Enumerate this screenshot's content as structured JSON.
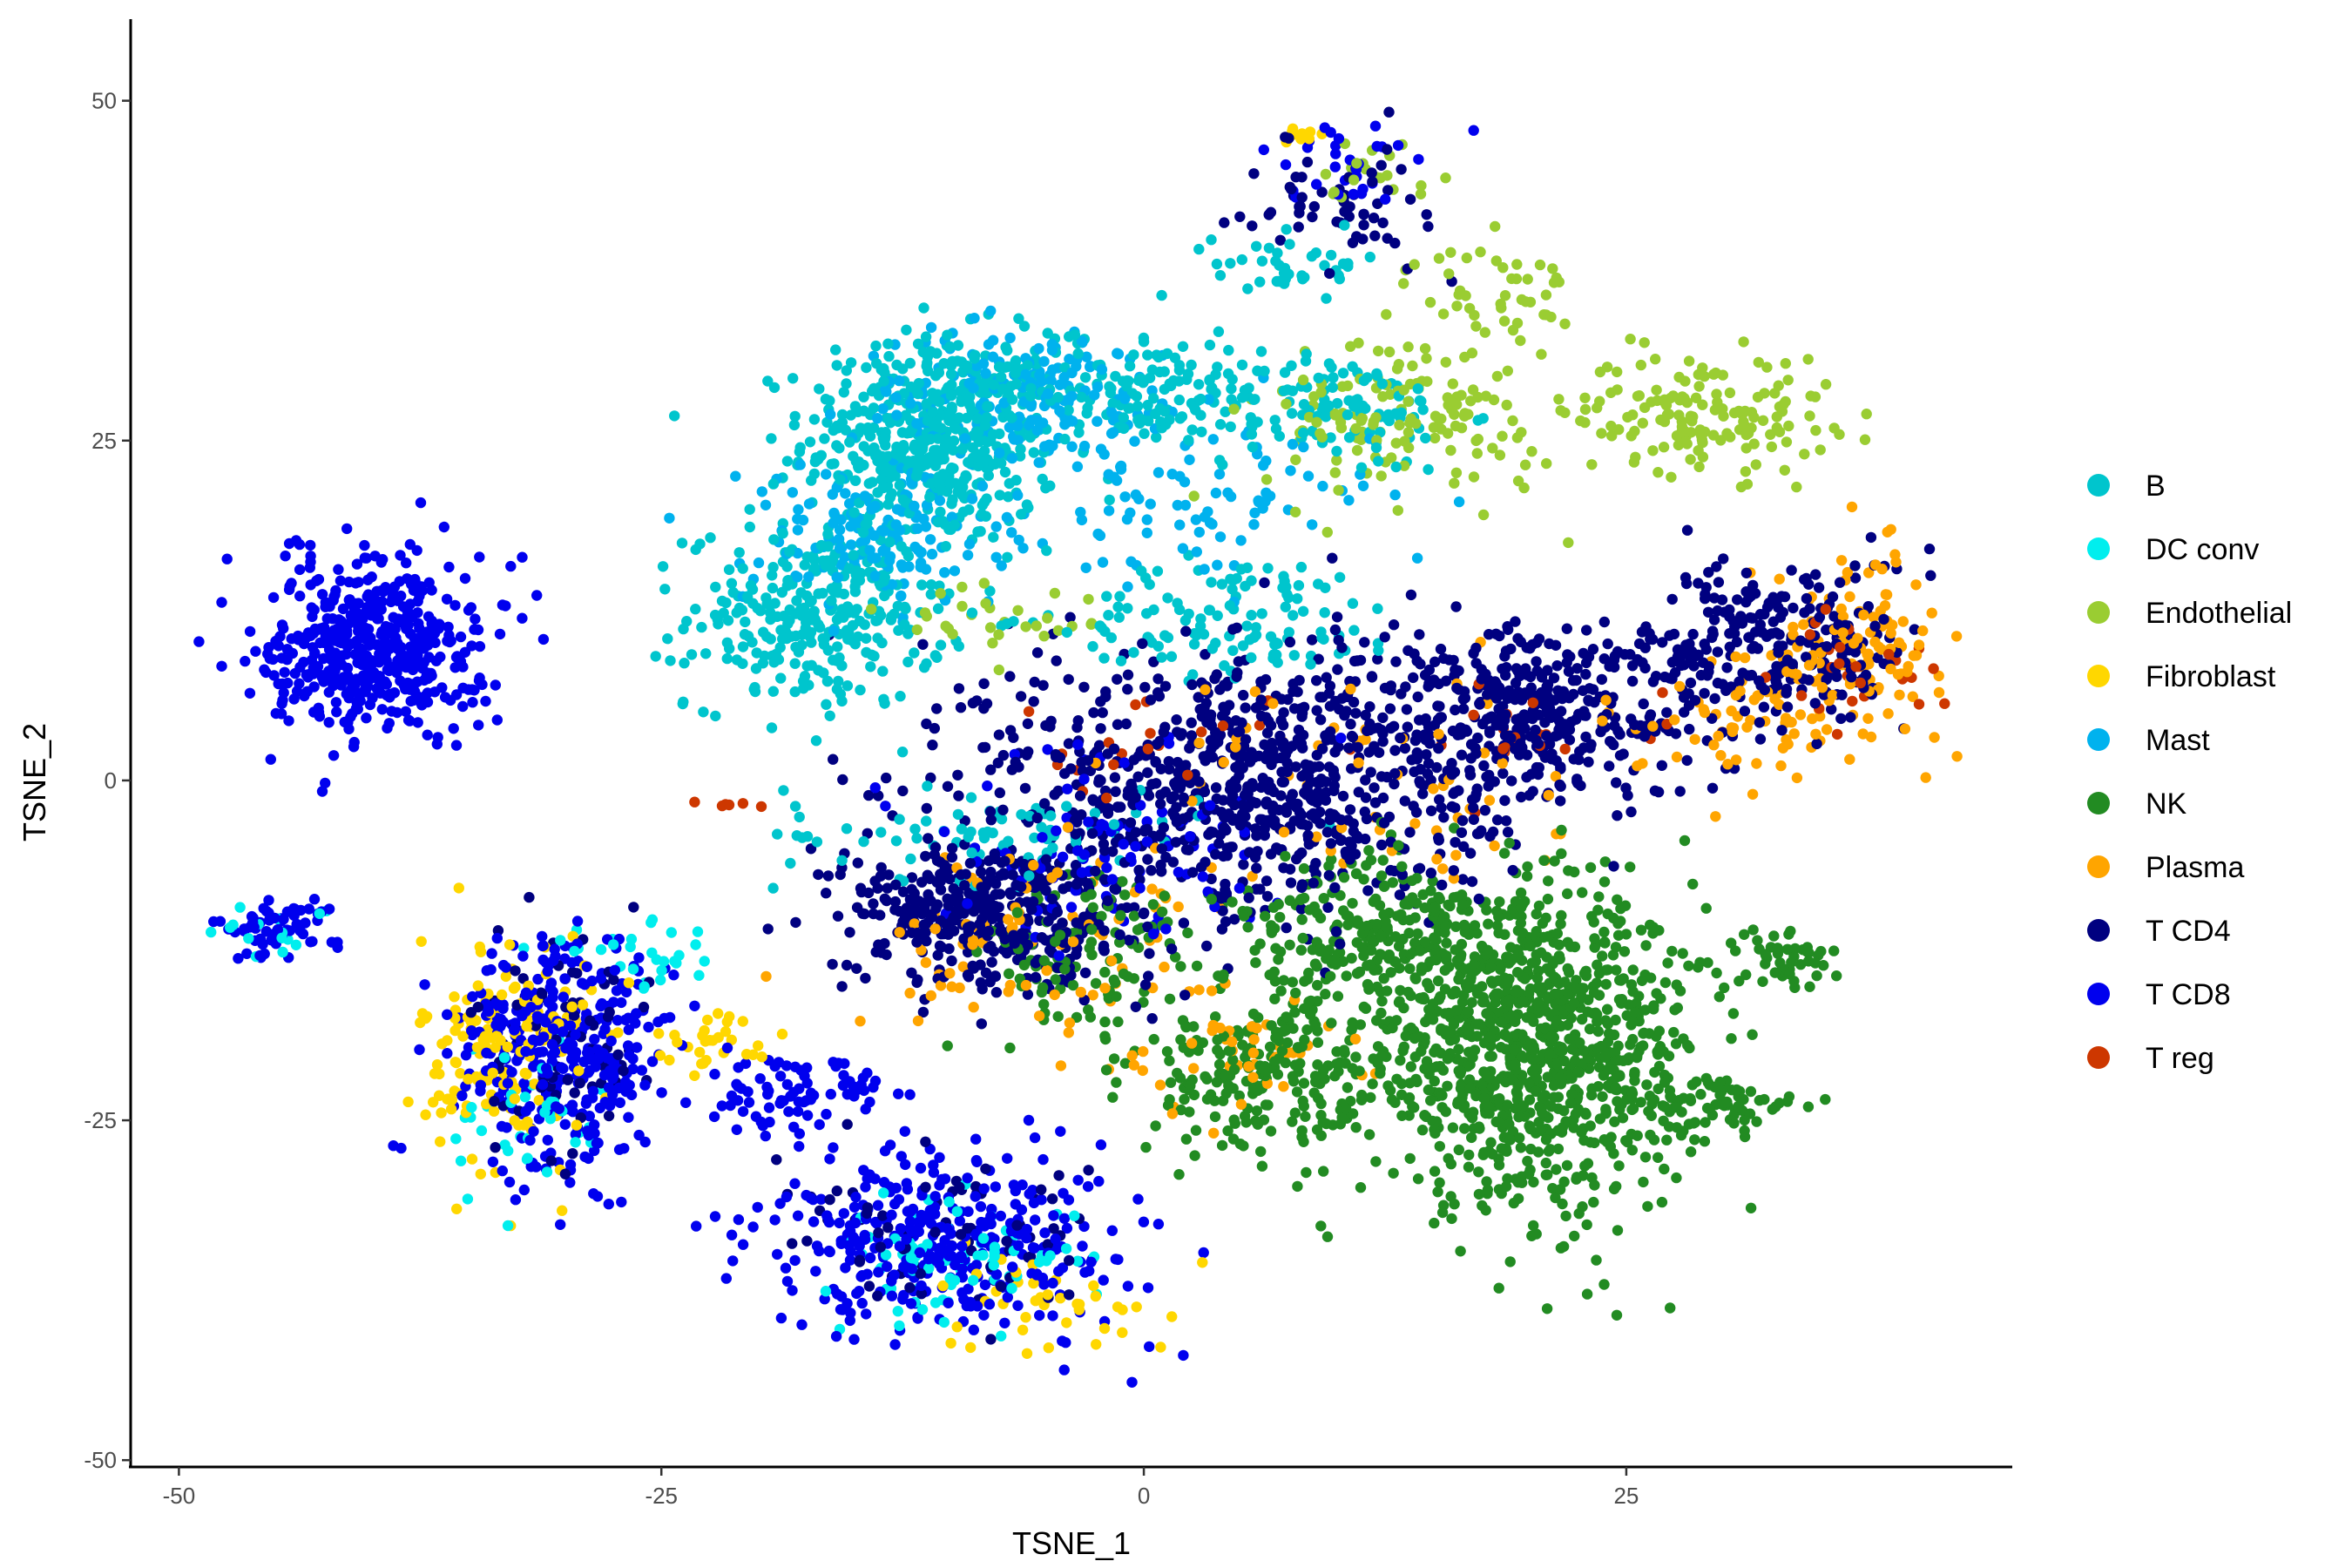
{
  "chart_data": {
    "type": "scatter",
    "title": "",
    "xlabel": "TSNE_1",
    "ylabel": "TSNE_2",
    "xlim": [
      -52.5,
      45
    ],
    "ylim": [
      -50.5,
      56
    ],
    "xticks": [
      -50,
      -25,
      0,
      25
    ],
    "xtick_labels": [
      "-50",
      "-25",
      "0",
      "25"
    ],
    "yticks": [
      -50,
      -25,
      0,
      25,
      50
    ],
    "ytick_labels": [
      "-50",
      "-25",
      "0",
      "25",
      "50"
    ],
    "grid": false,
    "legend_position": "right",
    "series": [
      {
        "name": "B",
        "color": "#00C5CD",
        "clusters": [
          {
            "cx": -11,
            "cy": 25,
            "rx": 6,
            "ry": 7,
            "n": 500
          },
          {
            "cx": -17,
            "cy": 12,
            "rx": 6,
            "ry": 6,
            "n": 300
          },
          {
            "cx": 0,
            "cy": 29,
            "rx": 8,
            "ry": 4,
            "n": 150
          },
          {
            "cx": 10,
            "cy": 27,
            "rx": 6,
            "ry": 4,
            "n": 100
          },
          {
            "cx": 5,
            "cy": 12,
            "rx": 8,
            "ry": 4,
            "n": 120
          },
          {
            "cx": -8,
            "cy": -4,
            "rx": 10,
            "ry": 3,
            "n": 80
          },
          {
            "cx": 8,
            "cy": 38,
            "rx": 4,
            "ry": 2,
            "n": 40
          }
        ]
      },
      {
        "name": "DC conv",
        "color": "#00EEEE",
        "clusters": [
          {
            "cx": -10,
            "cy": -35,
            "rx": 6,
            "ry": 4,
            "n": 80
          },
          {
            "cx": -26,
            "cy": -13,
            "rx": 5,
            "ry": 2,
            "n": 30
          },
          {
            "cx": -32,
            "cy": -25,
            "rx": 4,
            "ry": 6,
            "n": 40
          },
          {
            "cx": -45,
            "cy": -11,
            "rx": 3,
            "ry": 2,
            "n": 15
          }
        ]
      },
      {
        "name": "Endothelial",
        "color": "#9ACD32",
        "clusters": [
          {
            "cx": 14,
            "cy": 27,
            "rx": 7,
            "ry": 6,
            "n": 150
          },
          {
            "cx": 29,
            "cy": 27,
            "rx": 6,
            "ry": 4,
            "n": 150
          },
          {
            "cx": 18,
            "cy": 36,
            "rx": 4,
            "ry": 3,
            "n": 40
          },
          {
            "cx": 12,
            "cy": 45,
            "rx": 3,
            "ry": 2,
            "n": 20
          },
          {
            "cx": -8,
            "cy": 12,
            "rx": 6,
            "ry": 3,
            "n": 30
          }
        ]
      },
      {
        "name": "Fibroblast",
        "color": "#FFD700",
        "clusters": [
          {
            "cx": -33,
            "cy": -20,
            "rx": 4,
            "ry": 8,
            "n": 150
          },
          {
            "cx": -22,
            "cy": -19,
            "rx": 3,
            "ry": 2,
            "n": 30
          },
          {
            "cx": -5,
            "cy": -38,
            "rx": 6,
            "ry": 4,
            "n": 40
          },
          {
            "cx": 8,
            "cy": 47,
            "rx": 2,
            "ry": 1,
            "n": 10
          }
        ]
      },
      {
        "name": "Mast",
        "color": "#00B2EE",
        "clusters": [
          {
            "cx": -6,
            "cy": 28,
            "rx": 8,
            "ry": 5,
            "n": 200
          },
          {
            "cx": -14,
            "cy": 18,
            "rx": 6,
            "ry": 5,
            "n": 150
          },
          {
            "cx": 3,
            "cy": 20,
            "rx": 8,
            "ry": 5,
            "n": 80
          }
        ]
      },
      {
        "name": "NK",
        "color": "#228B22",
        "clusters": [
          {
            "cx": 20,
            "cy": -20,
            "rx": 8,
            "ry": 10,
            "n": 1000
          },
          {
            "cx": 13,
            "cy": -12,
            "rx": 8,
            "ry": 6,
            "n": 300
          },
          {
            "cx": 6,
            "cy": -22,
            "rx": 6,
            "ry": 5,
            "n": 200
          },
          {
            "cx": 33,
            "cy": -13,
            "rx": 3,
            "ry": 2,
            "n": 50
          },
          {
            "cx": 30,
            "cy": -24,
            "rx": 4,
            "ry": 2,
            "n": 60
          },
          {
            "cx": -3,
            "cy": -13,
            "rx": 5,
            "ry": 6,
            "n": 100
          }
        ]
      },
      {
        "name": "Plasma",
        "color": "#FFA500",
        "clusters": [
          {
            "cx": 37,
            "cy": 10,
            "rx": 4,
            "ry": 6,
            "n": 120
          },
          {
            "cx": 32,
            "cy": 5,
            "rx": 5,
            "ry": 5,
            "n": 60
          },
          {
            "cx": -5,
            "cy": -12,
            "rx": 9,
            "ry": 6,
            "n": 100
          },
          {
            "cx": 12,
            "cy": 0,
            "rx": 10,
            "ry": 8,
            "n": 60
          },
          {
            "cx": 5,
            "cy": -20,
            "rx": 6,
            "ry": 4,
            "n": 40
          }
        ]
      },
      {
        "name": "T CD4",
        "color": "#000080",
        "clusters": [
          {
            "cx": 5,
            "cy": 0,
            "rx": 12,
            "ry": 9,
            "n": 800
          },
          {
            "cx": 20,
            "cy": 5,
            "rx": 8,
            "ry": 6,
            "n": 400
          },
          {
            "cx": 33,
            "cy": 10,
            "rx": 6,
            "ry": 6,
            "n": 250
          },
          {
            "cx": -8,
            "cy": -10,
            "rx": 7,
            "ry": 5,
            "n": 400
          },
          {
            "cx": 10,
            "cy": 43,
            "rx": 4,
            "ry": 4,
            "n": 60
          },
          {
            "cx": -10,
            "cy": -34,
            "rx": 8,
            "ry": 5,
            "n": 80
          },
          {
            "cx": -30,
            "cy": -20,
            "rx": 4,
            "ry": 7,
            "n": 80
          }
        ]
      },
      {
        "name": "T CD8",
        "color": "#0000EE",
        "clusters": [
          {
            "cx": -40,
            "cy": 10,
            "rx": 5,
            "ry": 6,
            "n": 500
          },
          {
            "cx": -10,
            "cy": -34,
            "rx": 9,
            "ry": 6,
            "n": 350
          },
          {
            "cx": -30,
            "cy": -20,
            "rx": 5,
            "ry": 8,
            "n": 350
          },
          {
            "cx": -18,
            "cy": -23,
            "rx": 4,
            "ry": 3,
            "n": 80
          },
          {
            "cx": -45,
            "cy": -11,
            "rx": 3,
            "ry": 2,
            "n": 60
          },
          {
            "cx": -2,
            "cy": -5,
            "rx": 8,
            "ry": 6,
            "n": 100
          },
          {
            "cx": 10,
            "cy": 45,
            "rx": 4,
            "ry": 3,
            "n": 30
          }
        ]
      },
      {
        "name": "T reg",
        "color": "#CD3700",
        "clusters": [
          {
            "cx": 37,
            "cy": 8,
            "rx": 4,
            "ry": 4,
            "n": 30
          },
          {
            "cx": 0,
            "cy": 2,
            "rx": 6,
            "ry": 4,
            "n": 20
          },
          {
            "cx": 20,
            "cy": 3,
            "rx": 8,
            "ry": 4,
            "n": 20
          },
          {
            "cx": -22,
            "cy": -1.8,
            "rx": 2,
            "ry": 0.1,
            "n": 6
          }
        ]
      }
    ]
  }
}
